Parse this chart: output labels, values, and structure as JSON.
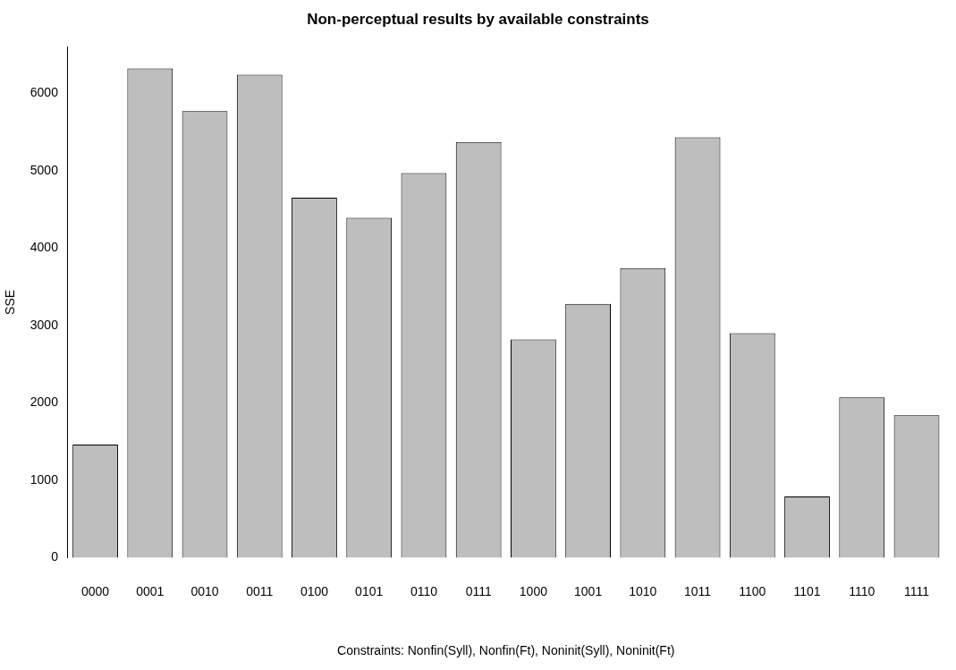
{
  "chart_data": {
    "type": "bar",
    "title": "Non-perceptual results by available constraints",
    "xlabel": "Constraints: Nonfin(Syll), Nonfin(Ft), Noninit(Syll), Noninit(Ft)",
    "ylabel": "SSE",
    "categories": [
      "0000",
      "0001",
      "0010",
      "0011",
      "0100",
      "0101",
      "0110",
      "0111",
      "1000",
      "1001",
      "1010",
      "1011",
      "1100",
      "1101",
      "1110",
      "1111"
    ],
    "values": [
      1460,
      6320,
      5770,
      6240,
      4650,
      4390,
      4970,
      5370,
      2820,
      3280,
      3740,
      5430,
      2900,
      790,
      2070,
      1840
    ],
    "color": "#bebebe",
    "ylim": [
      0,
      6600
    ],
    "yticks": [
      0,
      1000,
      2000,
      3000,
      4000,
      5000,
      6000
    ],
    "grid": false,
    "legend": false
  }
}
